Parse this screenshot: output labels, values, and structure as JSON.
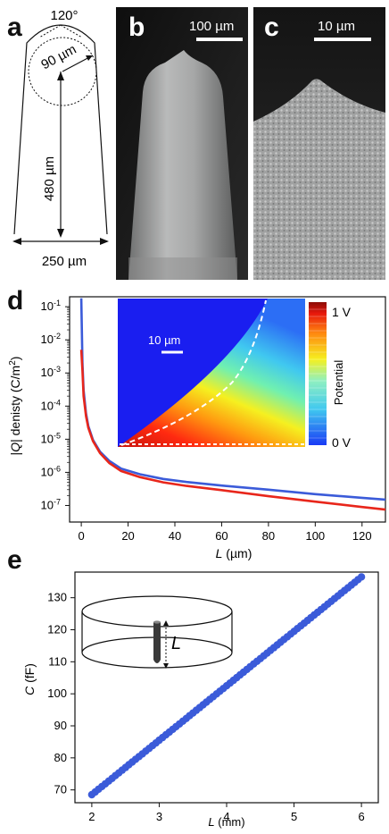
{
  "figure": {
    "panels": {
      "a": {
        "letter": "a",
        "angle_label": "120°",
        "radius_label": "90 µm",
        "height_label": "480 µm",
        "width_label": "250 µm"
      },
      "b": {
        "letter": "b",
        "scalebar_label": "100 µm"
      },
      "c": {
        "letter": "c",
        "scalebar_label": "10 µm"
      },
      "d": {
        "letter": "d",
        "ylabel_pre": "|",
        "ylabel_q": "Q",
        "ylabel_post": "| denisty (C/m",
        "ylabel_sup": "2",
        "ylabel_close": ")",
        "xlabel_italic": "L",
        "xlabel_unit": " (µm)",
        "inset": {
          "scalebar_label": "10 µm",
          "colorbar_top": "1 V",
          "colorbar_bottom": "0 V",
          "colorbar_title": "Potential"
        }
      },
      "e": {
        "letter": "e",
        "ylabel_italic": "C",
        "ylabel_unit": " (fF)",
        "xlabel_italic": "L",
        "xlabel_unit": " (mm)",
        "inset_label": "L"
      }
    }
  },
  "chart_data": [
    {
      "type": "line",
      "panel": "d",
      "xlim": [
        -5,
        130
      ],
      "ylim_log10": [
        -7.5,
        -0.7
      ],
      "yscale": "log",
      "x_ticks": [
        0,
        20,
        40,
        60,
        80,
        100,
        120
      ],
      "y_ticks_exp": [
        -7,
        -6,
        -5,
        -4,
        -3,
        -2,
        -1
      ],
      "y_tick_base": "10",
      "series": [
        {
          "color": "#3b5bd9",
          "x": [
            0,
            0.5,
            1,
            2,
            3,
            5,
            8,
            12,
            17,
            25,
            35,
            45,
            60,
            80,
            100,
            120,
            130
          ],
          "y": [
            0.18,
            0.002,
            0.0003,
            6e-05,
            2.5e-05,
            9.5e-06,
            4.2e-06,
            2.2e-06,
            1.3e-06,
            8.8e-07,
            6.3e-07,
            5.1e-07,
            4e-07,
            3e-07,
            2.2e-07,
            1.7e-07,
            1.5e-07
          ]
        },
        {
          "color": "#e8261b",
          "x": [
            0,
            0.5,
            1,
            2,
            3,
            5,
            8,
            12,
            17,
            25,
            35,
            45,
            60,
            80,
            100,
            120,
            130
          ],
          "y": [
            0.005,
            0.0012,
            0.0002,
            5e-05,
            2.2e-05,
            8.8e-06,
            3.8e-06,
            1.9e-06,
            1.1e-06,
            7.2e-07,
            5e-07,
            3.9e-07,
            2.9e-07,
            1.9e-07,
            1.3e-07,
            9e-08,
            7.5e-08
          ]
        }
      ]
    },
    {
      "type": "scatter",
      "panel": "e",
      "xlim": [
        1.75,
        6.25
      ],
      "ylim": [
        66,
        138
      ],
      "x_ticks": [
        2,
        3,
        4,
        5,
        6
      ],
      "y_ticks": [
        70,
        80,
        90,
        100,
        110,
        120,
        130
      ],
      "series": [
        {
          "color": "#3b5bd9",
          "x_start": 2.0,
          "x_end": 6.0,
          "n_points": 81,
          "y_start": 68.5,
          "y_end": 136.5
        }
      ]
    }
  ]
}
